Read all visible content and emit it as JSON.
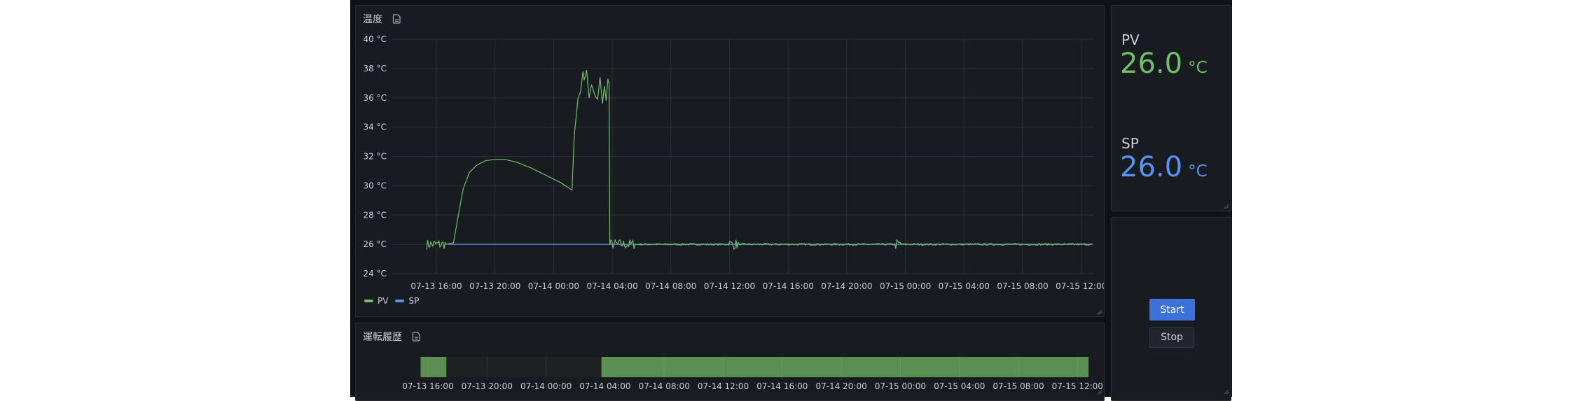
{
  "colors": {
    "pv": "#73bf69",
    "sp": "#5794f2",
    "state_on": "#5a8f52",
    "state_off": "#1f2125",
    "start_button": "#3d71d9"
  },
  "temperature_panel": {
    "title": "温度",
    "title_icon": "document-icon",
    "legend": [
      {
        "name": "PV",
        "color": "#73bf69"
      },
      {
        "name": "SP",
        "color": "#5794f2"
      }
    ]
  },
  "history_panel": {
    "title": "運転履歴",
    "title_icon": "document-icon"
  },
  "stat_panel": {
    "pv": {
      "label": "PV",
      "value": "26.0",
      "unit": "°C"
    },
    "sp": {
      "label": "SP",
      "value": "26.0",
      "unit": "°C"
    }
  },
  "control_panel": {
    "start_label": "Start",
    "stop_label": "Stop"
  },
  "chart_data": [
    {
      "type": "line",
      "title": "温度",
      "y_unit": "°C",
      "ylim": [
        24,
        40
      ],
      "y_ticks": [
        "40 °C",
        "38 °C",
        "36 °C",
        "34 °C",
        "32 °C",
        "30 °C",
        "28 °C",
        "26 °C",
        "24 °C"
      ],
      "x_ticks": [
        "07-13 16:00",
        "07-13 20:00",
        "07-14 00:00",
        "07-14 04:00",
        "07-14 08:00",
        "07-14 12:00",
        "07-14 16:00",
        "07-14 20:00",
        "07-15 00:00",
        "07-15 04:00",
        "07-15 08:00",
        "07-15 12:00"
      ],
      "grid": true,
      "legend_placement": "bottom-left",
      "series": [
        {
          "name": "PV",
          "points": [
            [
              "07-13 15:20",
              26.0
            ],
            [
              "07-13 16:40",
              26.0
            ],
            [
              "07-13 17:10",
              26.1
            ],
            [
              "07-13 17:30",
              28.0
            ],
            [
              "07-13 17:50",
              29.8
            ],
            [
              "07-13 18:15",
              30.9
            ],
            [
              "07-13 18:45",
              31.4
            ],
            [
              "07-13 19:20",
              31.7
            ],
            [
              "07-13 20:00",
              31.8
            ],
            [
              "07-13 20:40",
              31.8
            ],
            [
              "07-13 21:30",
              31.6
            ],
            [
              "07-13 22:30",
              31.2
            ],
            [
              "07-13 23:30",
              30.7
            ],
            [
              "07-14 00:30",
              30.2
            ],
            [
              "07-14 01:15",
              29.7
            ],
            [
              "07-14 01:25",
              33.5
            ],
            [
              "07-14 01:40",
              36.0
            ],
            [
              "07-14 01:50",
              36.4
            ],
            [
              "07-14 02:00",
              37.8
            ],
            [
              "07-14 02:05",
              37.2
            ],
            [
              "07-14 02:15",
              37.9
            ],
            [
              "07-14 02:25",
              36.0
            ],
            [
              "07-14 02:35",
              36.9
            ],
            [
              "07-14 02:50",
              36.1
            ],
            [
              "07-14 03:00",
              35.9
            ],
            [
              "07-14 03:10",
              37.4
            ],
            [
              "07-14 03:20",
              35.6
            ],
            [
              "07-14 03:28",
              36.8
            ],
            [
              "07-14 03:35",
              35.8
            ],
            [
              "07-14 03:42",
              37.3
            ],
            [
              "07-14 03:47",
              36.9
            ],
            [
              "07-14 03:50",
              26.0
            ],
            [
              "07-15 12:45",
              26.0
            ]
          ]
        },
        {
          "name": "SP",
          "points": [
            [
              "07-13 16:50",
              26.0
            ],
            [
              "07-15 12:45",
              26.0
            ]
          ]
        }
      ]
    },
    {
      "type": "state-timeline",
      "title": "運転履歴",
      "x_ticks": [
        "07-13 16:00",
        "07-13 20:00",
        "07-14 00:00",
        "07-14 04:00",
        "07-14 08:00",
        "07-14 12:00",
        "07-14 16:00",
        "07-14 20:00",
        "07-15 00:00",
        "07-15 04:00",
        "07-15 08:00",
        "07-15 12:00"
      ],
      "segments": [
        {
          "start": "07-13 15:30",
          "end": "07-13 17:15",
          "state": "running"
        },
        {
          "start": "07-13 17:15",
          "end": "07-14 03:45",
          "state": "stopped"
        },
        {
          "start": "07-14 03:45",
          "end": "07-15 12:45",
          "state": "running"
        }
      ]
    }
  ]
}
